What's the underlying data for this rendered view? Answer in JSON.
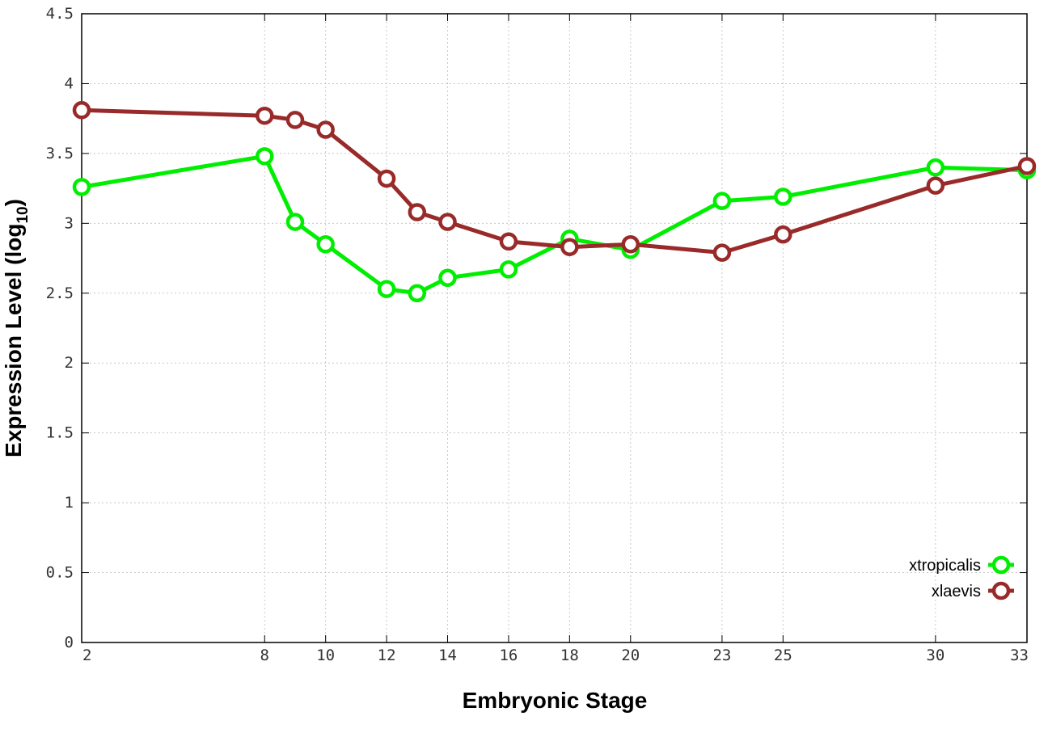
{
  "chart_data": {
    "type": "line",
    "xlabel": "Embryonic Stage",
    "ylabel_main": "Expression Level (log",
    "ylabel_sub": "10",
    "ylabel_close": ")",
    "ylim": [
      0,
      4.5
    ],
    "xlim": [
      2,
      33
    ],
    "grid": true,
    "legend_position": "bottom-right",
    "x_ticks": [
      2,
      8,
      10,
      12,
      14,
      16,
      18,
      20,
      23,
      25,
      30,
      33
    ],
    "x_tick_labels": [
      "2",
      "8",
      "10",
      "12",
      "14",
      "16",
      "18",
      "20",
      "23",
      "25",
      "30",
      "33"
    ],
    "y_ticks": [
      0,
      0.5,
      1,
      1.5,
      2,
      2.5,
      3,
      3.5,
      4,
      4.5
    ],
    "y_tick_labels": [
      "0",
      "0.5",
      "1",
      "1.5",
      "2",
      "2.5",
      "3",
      "3.5",
      "4",
      "4.5"
    ],
    "x": [
      2,
      8,
      9,
      10,
      12,
      13,
      14,
      16,
      18,
      20,
      23,
      25,
      30,
      33
    ],
    "series": [
      {
        "name": "xtropicalis",
        "color": "#00ee00",
        "values": [
          3.26,
          3.48,
          3.01,
          2.85,
          2.53,
          2.5,
          2.61,
          2.67,
          2.89,
          2.81,
          3.16,
          3.19,
          3.4,
          3.38
        ]
      },
      {
        "name": "xlaevis",
        "color": "#992a2a",
        "values": [
          3.81,
          3.77,
          3.74,
          3.67,
          3.32,
          3.08,
          3.01,
          2.87,
          2.83,
          2.85,
          2.79,
          2.92,
          3.27,
          3.41
        ]
      }
    ]
  }
}
